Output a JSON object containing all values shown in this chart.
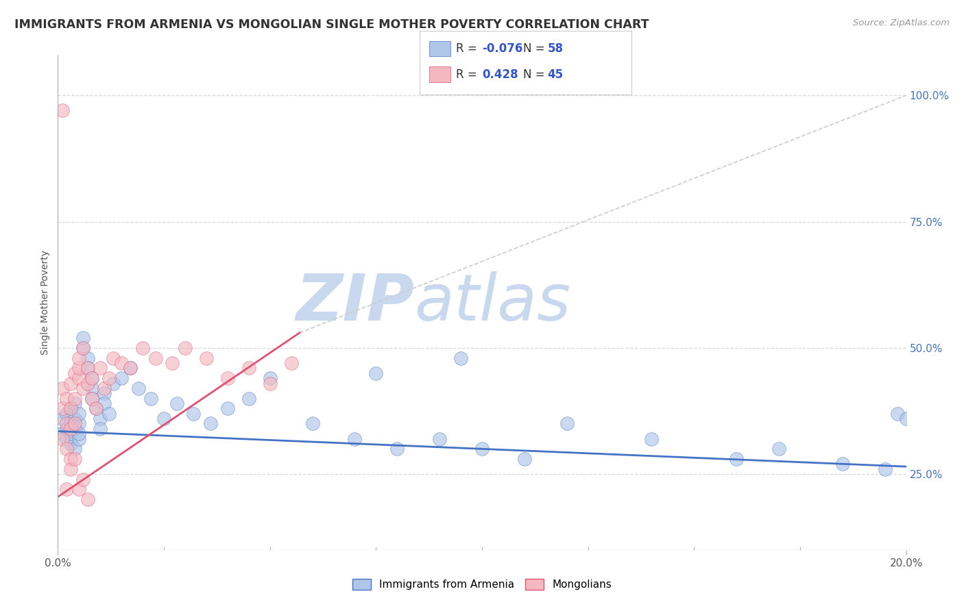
{
  "title": "IMMIGRANTS FROM ARMENIA VS MONGOLIAN SINGLE MOTHER POVERTY CORRELATION CHART",
  "source": "Source: ZipAtlas.com",
  "ylabel": "Single Mother Poverty",
  "legend_entries": [
    {
      "label": "Immigrants from Armenia",
      "color": "#aec6e8",
      "edge": "#4472c4",
      "R": "-0.076",
      "N": "58"
    },
    {
      "label": "Mongolians",
      "color": "#f4b8c1",
      "edge": "#e05070",
      "R": "0.428",
      "N": "45"
    }
  ],
  "y_ticks_labels": [
    "25.0%",
    "50.0%",
    "75.0%",
    "100.0%"
  ],
  "y_tick_vals": [
    0.25,
    0.5,
    0.75,
    1.0
  ],
  "x_range": [
    0.0,
    0.2
  ],
  "y_range": [
    0.1,
    1.08
  ],
  "background_color": "#ffffff",
  "grid_color": "#d8d8d8",
  "blue_scatter_color": "#aec6e8",
  "pink_scatter_color": "#f4b8c1",
  "blue_line_color": "#4472c4",
  "pink_line_color": "#e05070",
  "dashed_line_color": "#cccccc",
  "watermark_zip": "ZIP",
  "watermark_atlas": "atlas",
  "watermark_color_zip": "#c8d8ee",
  "watermark_color_atlas": "#c8d8ee",
  "blue_points_x": [
    0.001,
    0.001,
    0.002,
    0.002,
    0.002,
    0.003,
    0.003,
    0.003,
    0.003,
    0.004,
    0.004,
    0.004,
    0.004,
    0.005,
    0.005,
    0.005,
    0.005,
    0.006,
    0.006,
    0.007,
    0.007,
    0.008,
    0.008,
    0.008,
    0.009,
    0.01,
    0.01,
    0.011,
    0.011,
    0.012,
    0.013,
    0.015,
    0.017,
    0.019,
    0.022,
    0.025,
    0.028,
    0.032,
    0.036,
    0.04,
    0.045,
    0.05,
    0.06,
    0.07,
    0.08,
    0.09,
    0.1,
    0.11,
    0.12,
    0.14,
    0.16,
    0.17,
    0.185,
    0.195,
    0.198,
    0.2,
    0.075,
    0.095
  ],
  "blue_points_y": [
    0.33,
    0.36,
    0.32,
    0.34,
    0.37,
    0.31,
    0.33,
    0.35,
    0.38,
    0.3,
    0.34,
    0.36,
    0.39,
    0.32,
    0.35,
    0.33,
    0.37,
    0.5,
    0.52,
    0.48,
    0.46,
    0.44,
    0.42,
    0.4,
    0.38,
    0.36,
    0.34,
    0.41,
    0.39,
    0.37,
    0.43,
    0.44,
    0.46,
    0.42,
    0.4,
    0.36,
    0.39,
    0.37,
    0.35,
    0.38,
    0.4,
    0.44,
    0.35,
    0.32,
    0.3,
    0.32,
    0.3,
    0.28,
    0.35,
    0.32,
    0.28,
    0.3,
    0.27,
    0.26,
    0.37,
    0.36,
    0.45,
    0.48
  ],
  "pink_points_x": [
    0.001,
    0.001,
    0.001,
    0.002,
    0.002,
    0.002,
    0.003,
    0.003,
    0.003,
    0.003,
    0.004,
    0.004,
    0.004,
    0.005,
    0.005,
    0.005,
    0.006,
    0.006,
    0.007,
    0.007,
    0.008,
    0.008,
    0.009,
    0.01,
    0.011,
    0.012,
    0.013,
    0.015,
    0.017,
    0.02,
    0.023,
    0.027,
    0.03,
    0.035,
    0.04,
    0.045,
    0.05,
    0.055,
    0.002,
    0.003,
    0.004,
    0.005,
    0.006,
    0.007,
    0.001
  ],
  "pink_points_y": [
    0.32,
    0.38,
    0.42,
    0.3,
    0.35,
    0.4,
    0.28,
    0.34,
    0.38,
    0.43,
    0.35,
    0.4,
    0.45,
    0.44,
    0.46,
    0.48,
    0.42,
    0.5,
    0.43,
    0.46,
    0.4,
    0.44,
    0.38,
    0.46,
    0.42,
    0.44,
    0.48,
    0.47,
    0.46,
    0.5,
    0.48,
    0.47,
    0.5,
    0.48,
    0.44,
    0.46,
    0.43,
    0.47,
    0.22,
    0.26,
    0.28,
    0.22,
    0.24,
    0.2,
    0.97
  ],
  "blue_line_x": [
    0.0,
    0.2
  ],
  "blue_line_y": [
    0.335,
    0.265
  ],
  "pink_line_x": [
    0.0,
    0.057
  ],
  "pink_line_y": [
    0.205,
    0.53
  ],
  "dashed_line_x": [
    0.057,
    0.2
  ],
  "dashed_line_y": [
    0.53,
    1.0
  ],
  "x_tick_positions": [
    0.0,
    0.025,
    0.05,
    0.075,
    0.1,
    0.125,
    0.15,
    0.175,
    0.2
  ],
  "x_tick_labels": [
    "0.0%",
    "",
    "",
    "",
    "",
    "",
    "",
    "",
    "20.0%"
  ]
}
